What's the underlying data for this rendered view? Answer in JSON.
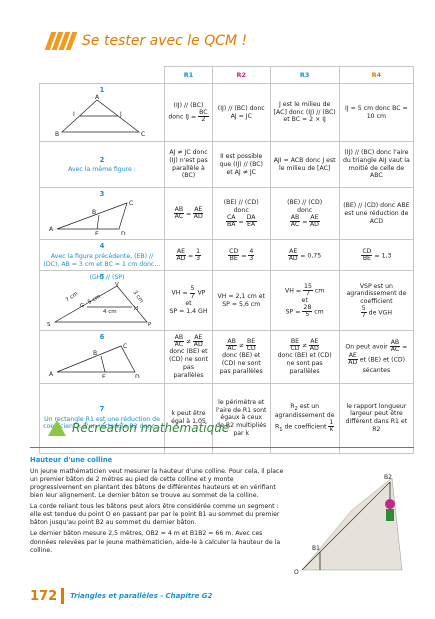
{
  "header": {
    "title": "Se tester avec le QCM !"
  },
  "columns": [
    "R1",
    "R2",
    "R3",
    "R4"
  ],
  "rows": [
    {
      "num": "1",
      "question": "",
      "r1": "(IJ) // (BC) donc IJ = BC/2",
      "r2": "(IJ) // (BC) donc AJ = JC",
      "r3": "J est le milieu de [AC] donc (IJ) // (BC) et BC = 2 × IJ",
      "r4": "IJ = 5 cm donc BC = 10 cm"
    },
    {
      "num": "2",
      "question": "Avec la même figure :",
      "r1": "AJ ≠ JC donc (IJ) n'est pas parallèle à (BC)",
      "r2": "Il est possible que (IJ) // (BC) et AJ ≠ JC",
      "r3": "AJI = ACB donc J est le milieu de [AC]",
      "r4": "(IJ) // (BC) donc l'aire du triangle AIJ vaut la moitié de celle de ABC"
    },
    {
      "num": "3",
      "question": "",
      "r1": "AB/AC = AE/AD",
      "r2": "(BE) // (CD) donc CA/BA = DA/EA",
      "r3": "(BE) // (CD) donc AB/AC = AE/AD",
      "r4": "(BE) // (CD) donc ABE est une réduction de ACD"
    },
    {
      "num": "4",
      "question": "Avec la figure précédente, (EB) // (DC), AB = 3 cm et BC = 1 cm donc…",
      "r1": "AE/AD = 1/3",
      "r2": "CD/BE = 4/3",
      "r3": "AE/AD = 0,75",
      "r4": "CD/BE = 1,3"
    },
    {
      "num": "5",
      "question": "(GH) // (SP)",
      "r1": "VH = 5/7 VP et SP = 1,4 GH",
      "r2": "VH = 2,1 cm et SP = 5,6 cm",
      "r3": "VH = 15/7 cm et SP = 28/5 cm",
      "r4": "VSP est un agrandissement de coefficient 5/7 de VGH"
    },
    {
      "num": "6",
      "question": "",
      "r1": "AB/AC ≠ AE/AD donc (BE) et (CD) ne sont pas parallèles",
      "r2": "AB/AC ≠ BE/CD donc (BE) et (CD) ne sont pas parallèles",
      "r3": "BE/CD ≠ AE/AD donc (BE) et (CD) ne sont pas parallèles",
      "r4": "On peut avoir AB/AC = AE/AD et (BE) et (CD) sécantes"
    },
    {
      "num": "7",
      "question": "Un rectangle R1 est une réduction de coefficient k d'un rectangle R2 donc…",
      "r1": "k peut être égal à 1,05",
      "r2": "le périmètre et l'aire de R1 sont égaux à ceux de R2 multipliés par k",
      "r3": "R2 est un agrandissement de R1 de coefficient 1/k",
      "r4": "le rapport longueur largeur peut être différent dans R1 et R2"
    }
  ],
  "figure_labels": {
    "f1": [
      "A",
      "I",
      "J",
      "B",
      "C"
    ],
    "f3": [
      "A",
      "B",
      "C",
      "E",
      "D"
    ],
    "f5": [
      "7 cm",
      "V",
      "3 cm",
      "G",
      "5 cm",
      "4 cm",
      "H",
      "S",
      "P"
    ],
    "f6": [
      "A",
      "B",
      "C",
      "E",
      "D"
    ]
  },
  "recreation": {
    "title": "Récréation mathématique"
  },
  "problem": {
    "heading": "Hauteur d'une colline",
    "p1": "Un jeune mathématicien veut mesurer la hauteur d'une colline. Pour cela, il place un premier bâton de 2 mètres au pied de cette colline et y monte progressivement en plantant des bâtons de différentes hauteurs et en vérifiant bien leur alignement. Le dernier bâton se trouve au sommet de la colline.",
    "p2": "La corde reliant tous les bâtons peut alors être considérée comme un segment : elle est tendue du point O en passant par par le point B1 au sommet du premier bâton jusqu'au point B2 au sommet du dernier bâton.",
    "p3": "Le dernier bâton mesure 2,5 mètres, OB2 = 4 m et B1B2 = 66 m. Avec ces données relevées par le jeune mathématicien, aide-le à calculer la hauteur de la colline.",
    "labels": [
      "B2",
      "B1",
      "O"
    ]
  },
  "footer": {
    "page": "172",
    "chapter": "Triangles et parallèles - Chapitre G2"
  },
  "colors": {
    "blue": "#1b8fd0",
    "orange": "#e07b00",
    "magenta": "#c2278a",
    "green": "#8dc63f"
  }
}
